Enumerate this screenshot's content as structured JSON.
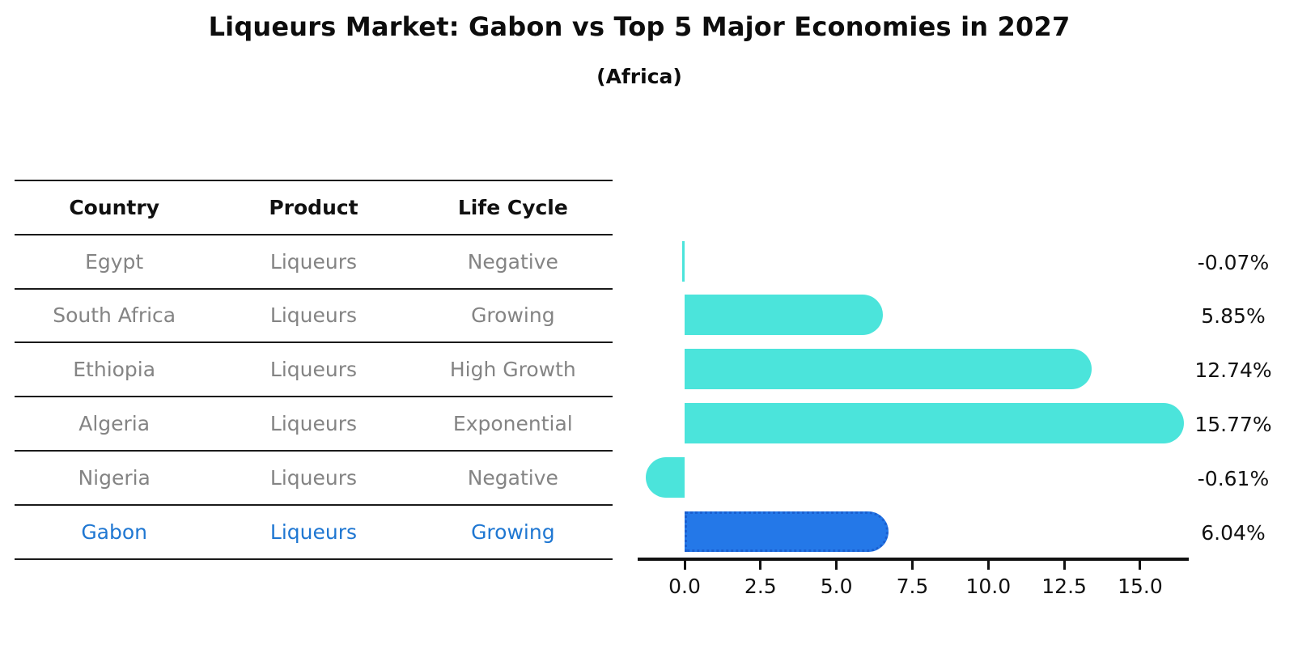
{
  "chart_data": {
    "type": "bar",
    "orientation": "horizontal",
    "title": "Liqueurs Market: Gabon vs Top 5 Major Economies in 2027",
    "subtitle": "(Africa)",
    "categories": [
      "Egypt",
      "South Africa",
      "Ethiopia",
      "Algeria",
      "Nigeria",
      "Gabon"
    ],
    "values": [
      -0.07,
      5.85,
      12.74,
      15.77,
      -0.61,
      6.04
    ],
    "value_labels": [
      "-0.07%",
      "5.85%",
      "12.74%",
      "15.77%",
      "-0.61%",
      "6.04%"
    ],
    "x_ticks": [
      0.0,
      2.5,
      5.0,
      7.5,
      10.0,
      12.5,
      15.0
    ],
    "xlim": [
      -1.6,
      16.6
    ],
    "highlight_index": 5,
    "grid": false,
    "legend": "none",
    "colors": {
      "bar": "#4BE4DB",
      "highlight_bar": "#2478E8",
      "highlight_border": "#1A5FD0",
      "highlight_text": "#1F77D2",
      "row_text": "#848484",
      "axis": "#111111"
    }
  },
  "table": {
    "headers": [
      "Country",
      "Product",
      "Life Cycle"
    ],
    "rows": [
      {
        "country": "Egypt",
        "product": "Liqueurs",
        "life_cycle": "Negative"
      },
      {
        "country": "South Africa",
        "product": "Liqueurs",
        "life_cycle": "Growing"
      },
      {
        "country": "Ethiopia",
        "product": "Liqueurs",
        "life_cycle": "High Growth"
      },
      {
        "country": "Algeria",
        "product": "Liqueurs",
        "life_cycle": "Exponential"
      },
      {
        "country": "Nigeria",
        "product": "Liqueurs",
        "life_cycle": "Negative"
      },
      {
        "country": "Gabon",
        "product": "Liqueurs",
        "life_cycle": "Growing"
      }
    ]
  }
}
